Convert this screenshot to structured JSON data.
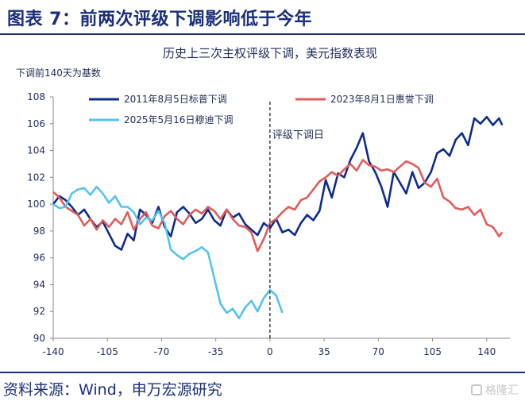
{
  "header": {
    "title": "图表 7：前两次评级下调影响低于今年"
  },
  "footer": {
    "source": "资料来源：Wind，申万宏源研究",
    "watermark": "格隆汇"
  },
  "chart_data": {
    "type": "line",
    "title": "历史上三次主权评级下调，美元指数表现",
    "ylabel": "下调前140天为基数",
    "xlabel": "",
    "xlim": [
      -140,
      155
    ],
    "ylim": [
      90,
      108
    ],
    "xticks": [
      -140,
      -105,
      -70,
      -35,
      0,
      35,
      70,
      105,
      140
    ],
    "yticks": [
      90,
      92,
      94,
      96,
      98,
      100,
      102,
      104,
      106,
      108
    ],
    "grid": false,
    "legend": "top",
    "annotation": {
      "text": "评级下调日",
      "x": 0
    },
    "series": [
      {
        "name": "2011年8月5日标普下调",
        "color": "#0d2c8c",
        "x": [
          -140,
          -136,
          -132,
          -128,
          -124,
          -120,
          -116,
          -112,
          -108,
          -104,
          -100,
          -96,
          -92,
          -88,
          -84,
          -80,
          -76,
          -72,
          -68,
          -64,
          -60,
          -56,
          -52,
          -48,
          -44,
          -40,
          -36,
          -32,
          -28,
          -24,
          -20,
          -16,
          -12,
          -8,
          -4,
          0,
          4,
          8,
          12,
          16,
          20,
          24,
          28,
          32,
          36,
          40,
          44,
          48,
          52,
          56,
          60,
          64,
          68,
          72,
          76,
          80,
          84,
          88,
          92,
          96,
          100,
          104,
          108,
          112,
          116,
          120,
          124,
          128,
          132,
          136,
          140,
          144,
          148,
          150
        ],
        "y": [
          100.0,
          100.6,
          100.3,
          99.8,
          99.2,
          99.6,
          98.9,
          98.3,
          98.7,
          97.8,
          96.9,
          96.6,
          97.8,
          97.3,
          99.6,
          99.2,
          98.6,
          99.8,
          98.3,
          97.6,
          99.4,
          99.8,
          99.3,
          98.6,
          98.9,
          99.6,
          98.8,
          98.4,
          99.6,
          99.0,
          99.3,
          98.5,
          98.1,
          97.7,
          98.6,
          98.2,
          98.9,
          97.9,
          98.1,
          97.7,
          98.6,
          99.2,
          98.8,
          99.5,
          101.8,
          100.5,
          102.3,
          102.0,
          103.3,
          104.2,
          105.3,
          103.2,
          102.4,
          101.3,
          99.8,
          102.4,
          101.6,
          100.8,
          102.4,
          101.2,
          101.6,
          102.4,
          103.8,
          104.1,
          103.6,
          104.8,
          105.3,
          104.4,
          106.4,
          106.0,
          106.5,
          105.9,
          106.4,
          105.9
        ]
      },
      {
        "name": "2023年8月1日惠誉下调",
        "color": "#e15b5b",
        "x": [
          -140,
          -136,
          -132,
          -128,
          -124,
          -120,
          -116,
          -112,
          -108,
          -104,
          -100,
          -96,
          -92,
          -88,
          -84,
          -80,
          -76,
          -72,
          -68,
          -64,
          -60,
          -56,
          -52,
          -48,
          -44,
          -40,
          -36,
          -32,
          -28,
          -24,
          -20,
          -16,
          -12,
          -8,
          -4,
          0,
          4,
          8,
          12,
          16,
          20,
          24,
          28,
          32,
          36,
          40,
          44,
          48,
          52,
          56,
          60,
          64,
          68,
          72,
          76,
          80,
          84,
          88,
          92,
          96,
          100,
          104,
          108,
          112,
          116,
          120,
          124,
          128,
          132,
          136,
          140,
          144,
          148,
          150
        ],
        "y": [
          100.9,
          100.5,
          99.8,
          99.5,
          99.2,
          98.4,
          98.9,
          98.1,
          98.8,
          98.3,
          98.9,
          98.5,
          99.4,
          98.1,
          98.9,
          99.4,
          98.4,
          98.2,
          99.1,
          99.5,
          98.9,
          98.5,
          99.2,
          99.6,
          99.3,
          99.8,
          99.5,
          98.9,
          99.6,
          98.9,
          98.4,
          98.3,
          97.9,
          96.5,
          97.4,
          98.6,
          98.9,
          99.4,
          99.8,
          99.6,
          100.3,
          100.5,
          101.1,
          101.7,
          102.0,
          102.4,
          102.1,
          102.6,
          103.0,
          102.5,
          103.3,
          102.9,
          102.8,
          102.5,
          102.6,
          102.4,
          102.8,
          103.2,
          103.0,
          102.7,
          101.6,
          101.3,
          101.9,
          100.5,
          100.2,
          99.7,
          99.6,
          99.8,
          99.2,
          99.6,
          98.5,
          98.3,
          97.6,
          97.9
        ]
      },
      {
        "name": "2025年5月16日穆迪下调",
        "color": "#55c3f0",
        "x": [
          -140,
          -136,
          -132,
          -128,
          -124,
          -120,
          -116,
          -112,
          -108,
          -104,
          -100,
          -96,
          -92,
          -88,
          -84,
          -80,
          -76,
          -72,
          -68,
          -64,
          -60,
          -56,
          -52,
          -48,
          -44,
          -40,
          -36,
          -32,
          -28,
          -24,
          -20,
          -16,
          -12,
          -8,
          -4,
          0,
          4,
          8
        ],
        "y": [
          100.0,
          99.7,
          99.8,
          100.8,
          101.1,
          101.2,
          100.7,
          101.3,
          100.8,
          100.1,
          100.6,
          99.8,
          99.8,
          99.4,
          98.5,
          99.0,
          98.8,
          99.5,
          98.6,
          96.6,
          96.2,
          95.9,
          96.3,
          96.5,
          96.8,
          96.4,
          94.5,
          92.6,
          91.9,
          92.2,
          91.5,
          92.3,
          92.8,
          92.0,
          93.0,
          93.6,
          93.2,
          91.9
        ]
      }
    ]
  }
}
